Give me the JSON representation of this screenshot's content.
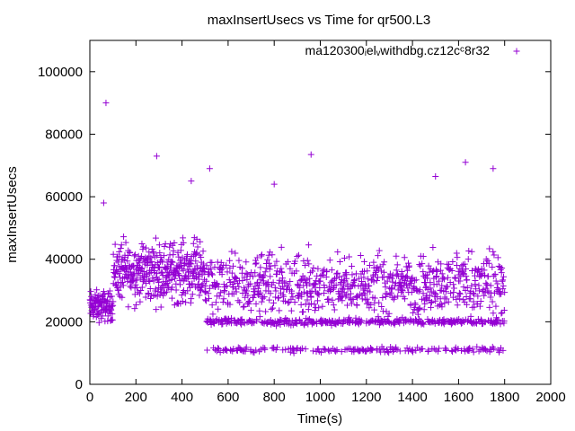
{
  "chart_data": {
    "type": "scatter",
    "title": "maxInsertUsecs vs Time for qr500.L3",
    "xlabel": "Time(s)",
    "ylabel": "maxInsertUsecs",
    "xlim": [
      0,
      2000
    ],
    "ylim": [
      0,
      110000
    ],
    "x_ticks": [
      0,
      200,
      400,
      600,
      800,
      1000,
      1200,
      1400,
      1600,
      1800,
      2000
    ],
    "y_ticks": [
      0,
      20000,
      40000,
      60000,
      80000,
      100000
    ],
    "x_tick_labels": [
      "0",
      "200",
      "400",
      "600",
      "800",
      "1000",
      "1200",
      "1400",
      "1600",
      "1800",
      "2000"
    ],
    "y_tick_labels": [
      "0",
      "20000",
      "40000",
      "60000",
      "80000",
      "100000"
    ],
    "grid": false,
    "legend_position": "top-right",
    "marker": "plus",
    "color": "#9400d3",
    "series": [
      {
        "name": "ma120300_el_withdbg.cz12c_c8r32",
        "name_display": "ma120300ᵢelᵥwithdbg.cz12cᶜ8r32",
        "x_range": [
          0,
          1800
        ],
        "point_count": 1800,
        "bands": [
          {
            "x_range": [
              0,
              100
            ],
            "center": 25000,
            "spread": 7000
          },
          {
            "x_range": [
              100,
              500
            ],
            "center": 36000,
            "spread": 14000
          },
          {
            "x_range": [
              500,
              1800
            ],
            "center": 32000,
            "spread": 14000
          },
          {
            "x_range": [
              500,
              1800
            ],
            "center": 20000,
            "spread": 1500
          },
          {
            "x_range": [
              500,
              1800
            ],
            "center": 11000,
            "spread": 1200
          }
        ],
        "outliers": [
          {
            "x": 70,
            "y": 90000
          },
          {
            "x": 290,
            "y": 73000
          },
          {
            "x": 960,
            "y": 73500
          },
          {
            "x": 1630,
            "y": 71000
          },
          {
            "x": 520,
            "y": 69000
          },
          {
            "x": 1750,
            "y": 69000
          },
          {
            "x": 1500,
            "y": 66500
          },
          {
            "x": 800,
            "y": 64000
          },
          {
            "x": 440,
            "y": 65000
          },
          {
            "x": 60,
            "y": 58000
          }
        ]
      }
    ]
  }
}
